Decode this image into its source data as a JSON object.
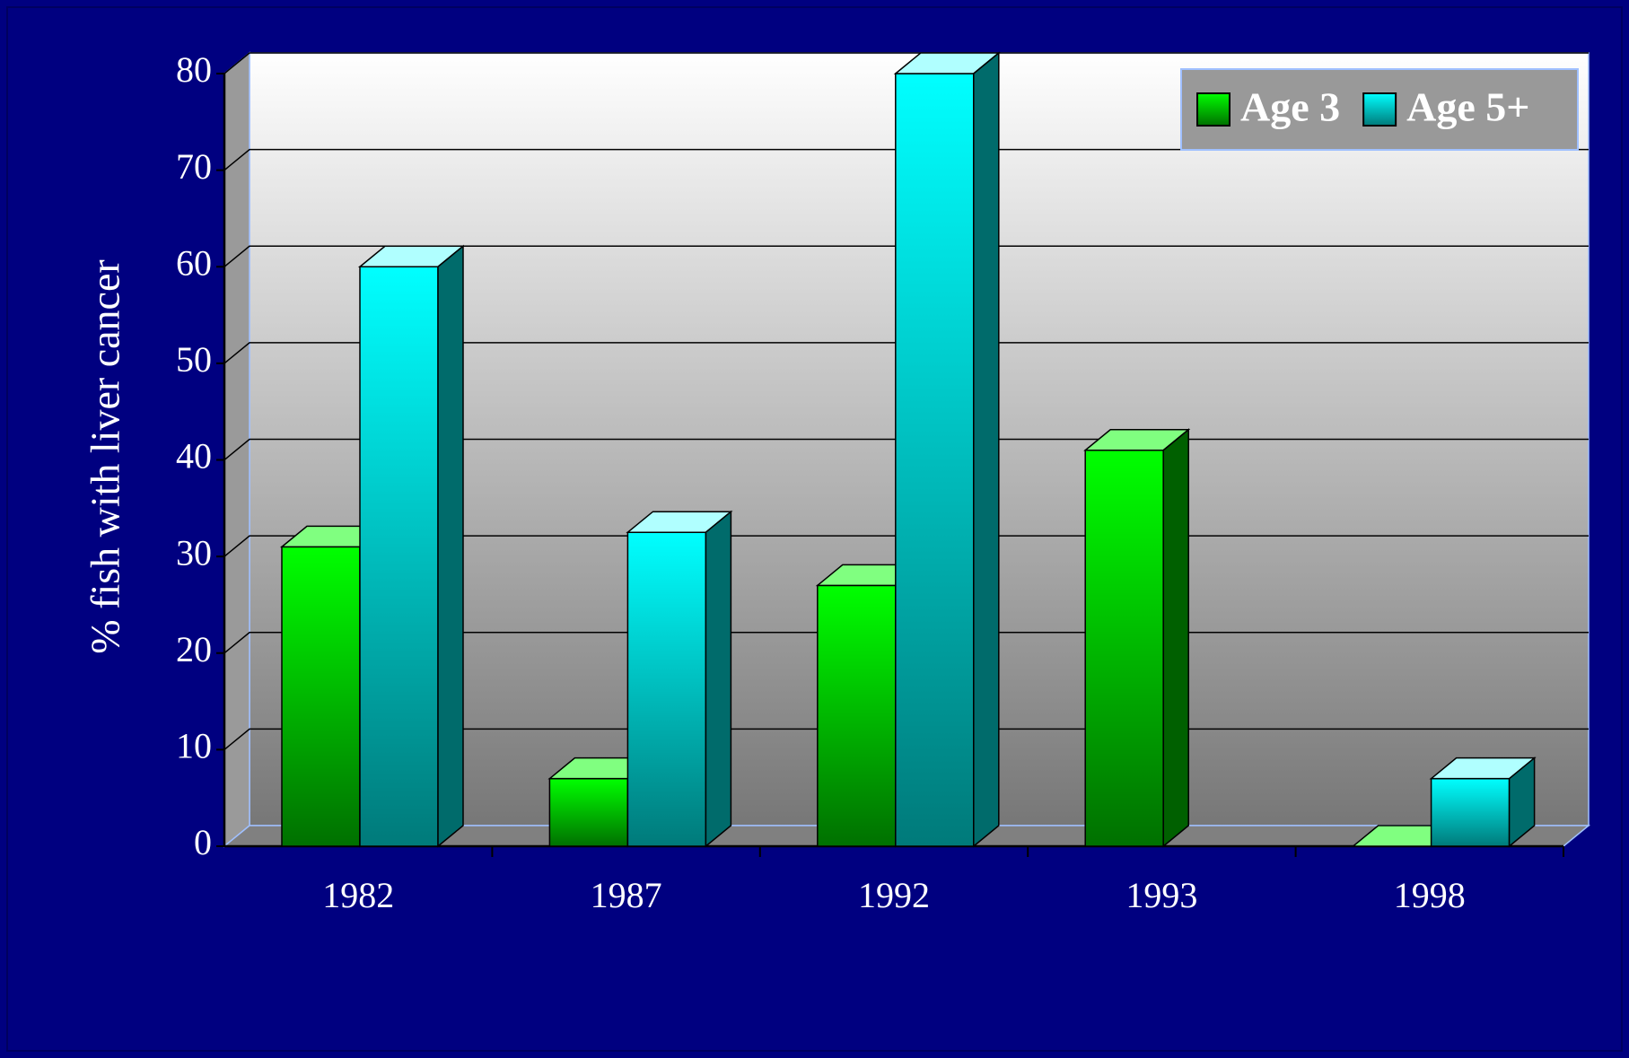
{
  "chart_data": {
    "type": "bar3d",
    "ylabel": "% fish with liver cancer",
    "categories": [
      "1982",
      "1987",
      "1992",
      "1993",
      "1998"
    ],
    "series": [
      {
        "name": "Age 3",
        "color": "#00c800",
        "values": [
          31,
          7,
          27,
          41,
          0
        ]
      },
      {
        "name": "Age 5+",
        "color": "#00e0e0",
        "values": [
          60,
          32.5,
          80,
          null,
          7
        ]
      }
    ],
    "ylim": [
      0,
      80
    ],
    "yticks": [
      0,
      10,
      20,
      30,
      40,
      50,
      60,
      70,
      80
    ],
    "grid": true,
    "legend": "upper right"
  }
}
